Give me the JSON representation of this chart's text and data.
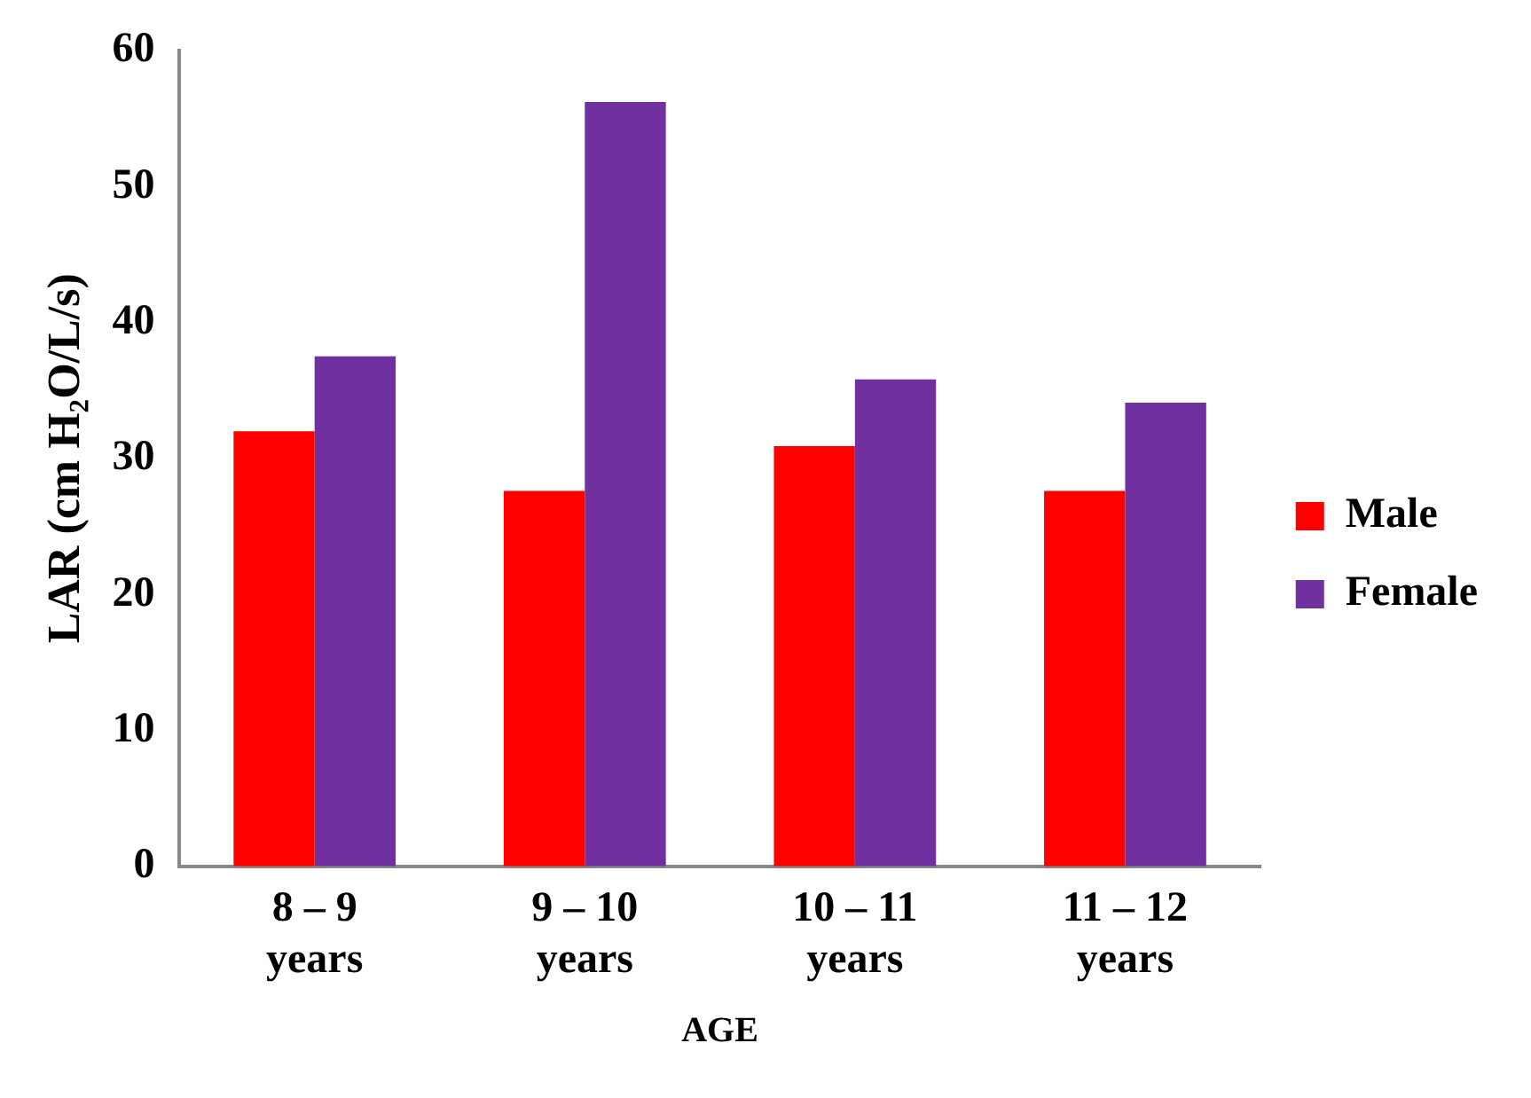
{
  "chart_data": {
    "type": "bar",
    "xlabel": "AGE",
    "ylabel": "LAR (cm H₂O/L/s)",
    "categories": [
      "8 – 9 years",
      "9 – 10 years",
      "10 – 11 years",
      "11 – 12 years"
    ],
    "series": [
      {
        "name": "Male",
        "color": "#ff0000",
        "values": [
          32.0,
          27.6,
          30.9,
          27.6
        ]
      },
      {
        "name": "Female",
        "color": "#7030a0",
        "values": [
          37.5,
          56.2,
          35.8,
          34.1
        ]
      }
    ],
    "ylim": [
      0,
      60
    ],
    "yticks": [
      0,
      10,
      20,
      30,
      40,
      50,
      60
    ],
    "grid": false,
    "legend": "right"
  }
}
